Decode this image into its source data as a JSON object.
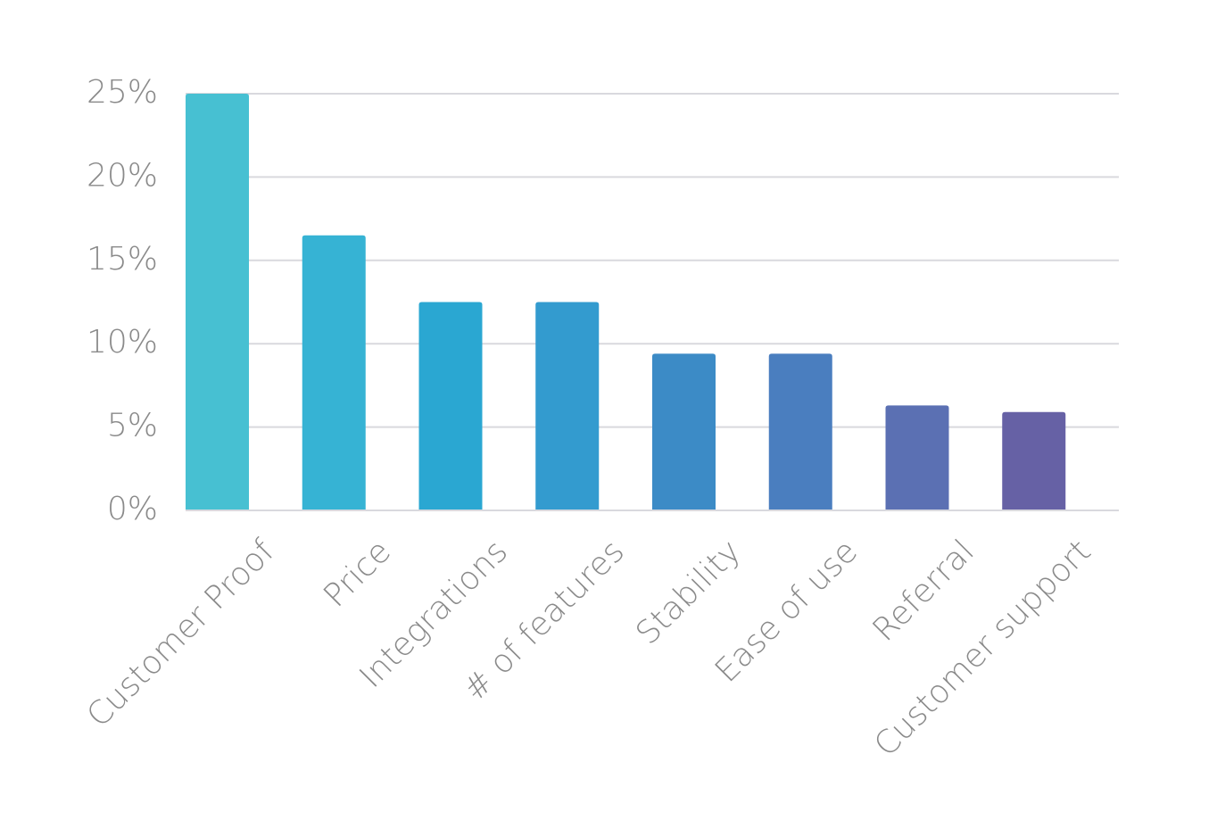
{
  "chart_data": {
    "type": "bar",
    "title": "",
    "xlabel": "",
    "ylabel": "",
    "categories": [
      "Customer Proof",
      "Price",
      "Integrations",
      "# of features",
      "Stability",
      "Ease of use",
      "Referral",
      "Customer support"
    ],
    "values": [
      25.0,
      16.5,
      12.5,
      12.5,
      9.4,
      9.4,
      6.3,
      5.9
    ],
    "unit": "%",
    "ylim": [
      0,
      25
    ],
    "yticks": [
      0,
      5,
      10,
      15,
      20,
      25
    ],
    "ytick_labels": [
      "0%",
      "5%",
      "10%",
      "15%",
      "20%",
      "25%"
    ],
    "grid": true,
    "legend": "none",
    "colors": [
      "#47c0d2",
      "#36b3d4",
      "#2aa7d2",
      "#339bcf",
      "#3c8bc6",
      "#4a7ebf",
      "#5b70b3",
      "#6661a5"
    ]
  }
}
